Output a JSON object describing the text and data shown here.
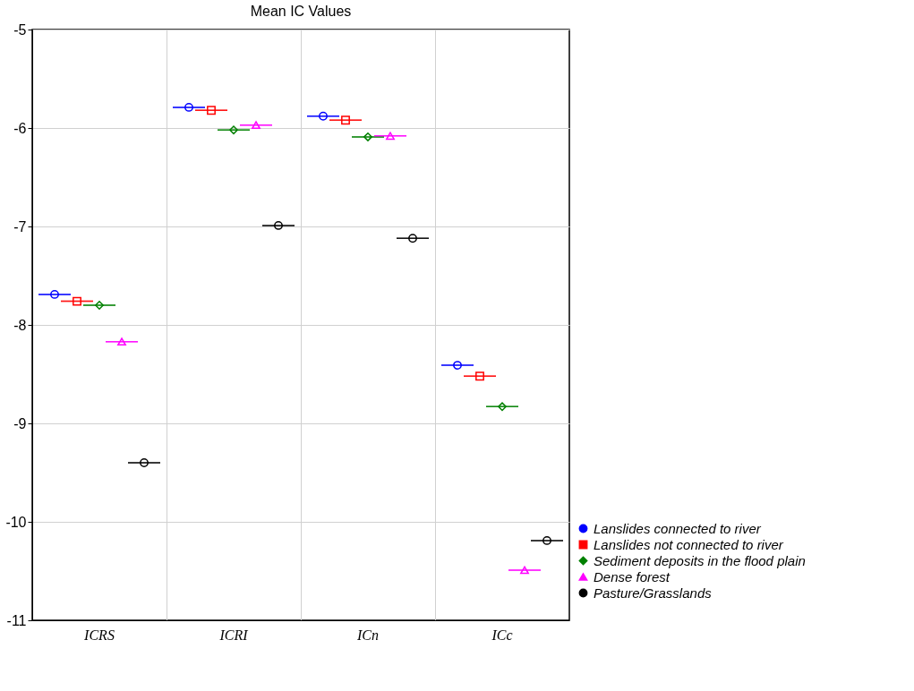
{
  "chart_data": {
    "type": "scatter",
    "title": "Mean IC Values",
    "categories": [
      "ICRS",
      "ICRI",
      "ICn",
      "ICc"
    ],
    "series": [
      {
        "name": "Lanslides connected to river",
        "color": "#0000ff",
        "marker": "circle",
        "values": [
          -7.69,
          -5.79,
          -5.88,
          -8.41
        ],
        "errors": [
          0,
          0,
          0,
          0
        ]
      },
      {
        "name": "Lanslides not connected to river",
        "color": "#ff0000",
        "marker": "square",
        "values": [
          -7.76,
          -5.82,
          -5.92,
          -8.52
        ],
        "errors": [
          0,
          0,
          0,
          0
        ]
      },
      {
        "name": "Sediment deposits in the flood plain",
        "color": "#008000",
        "marker": "diamond",
        "values": [
          -7.8,
          -6.02,
          -6.09,
          -8.83
        ],
        "errors": [
          0,
          0,
          0,
          0
        ]
      },
      {
        "name": "Dense forest",
        "color": "#ff00ff",
        "marker": "triangle",
        "values": [
          -8.17,
          -5.97,
          -6.08,
          -10.49
        ],
        "errors": [
          0,
          0,
          0,
          0
        ]
      },
      {
        "name": "Pasture/Grasslands",
        "color": "#000000",
        "marker": "circle",
        "values": [
          -9.4,
          -6.99,
          -7.12,
          -10.19
        ],
        "errors": [
          0,
          0,
          0,
          0
        ]
      }
    ],
    "ylim": [
      -11,
      -5
    ],
    "yticks": [
      -11,
      -10,
      -9,
      -8,
      -7,
      -6,
      -5
    ],
    "grid": true,
    "legend": "bottom right"
  }
}
